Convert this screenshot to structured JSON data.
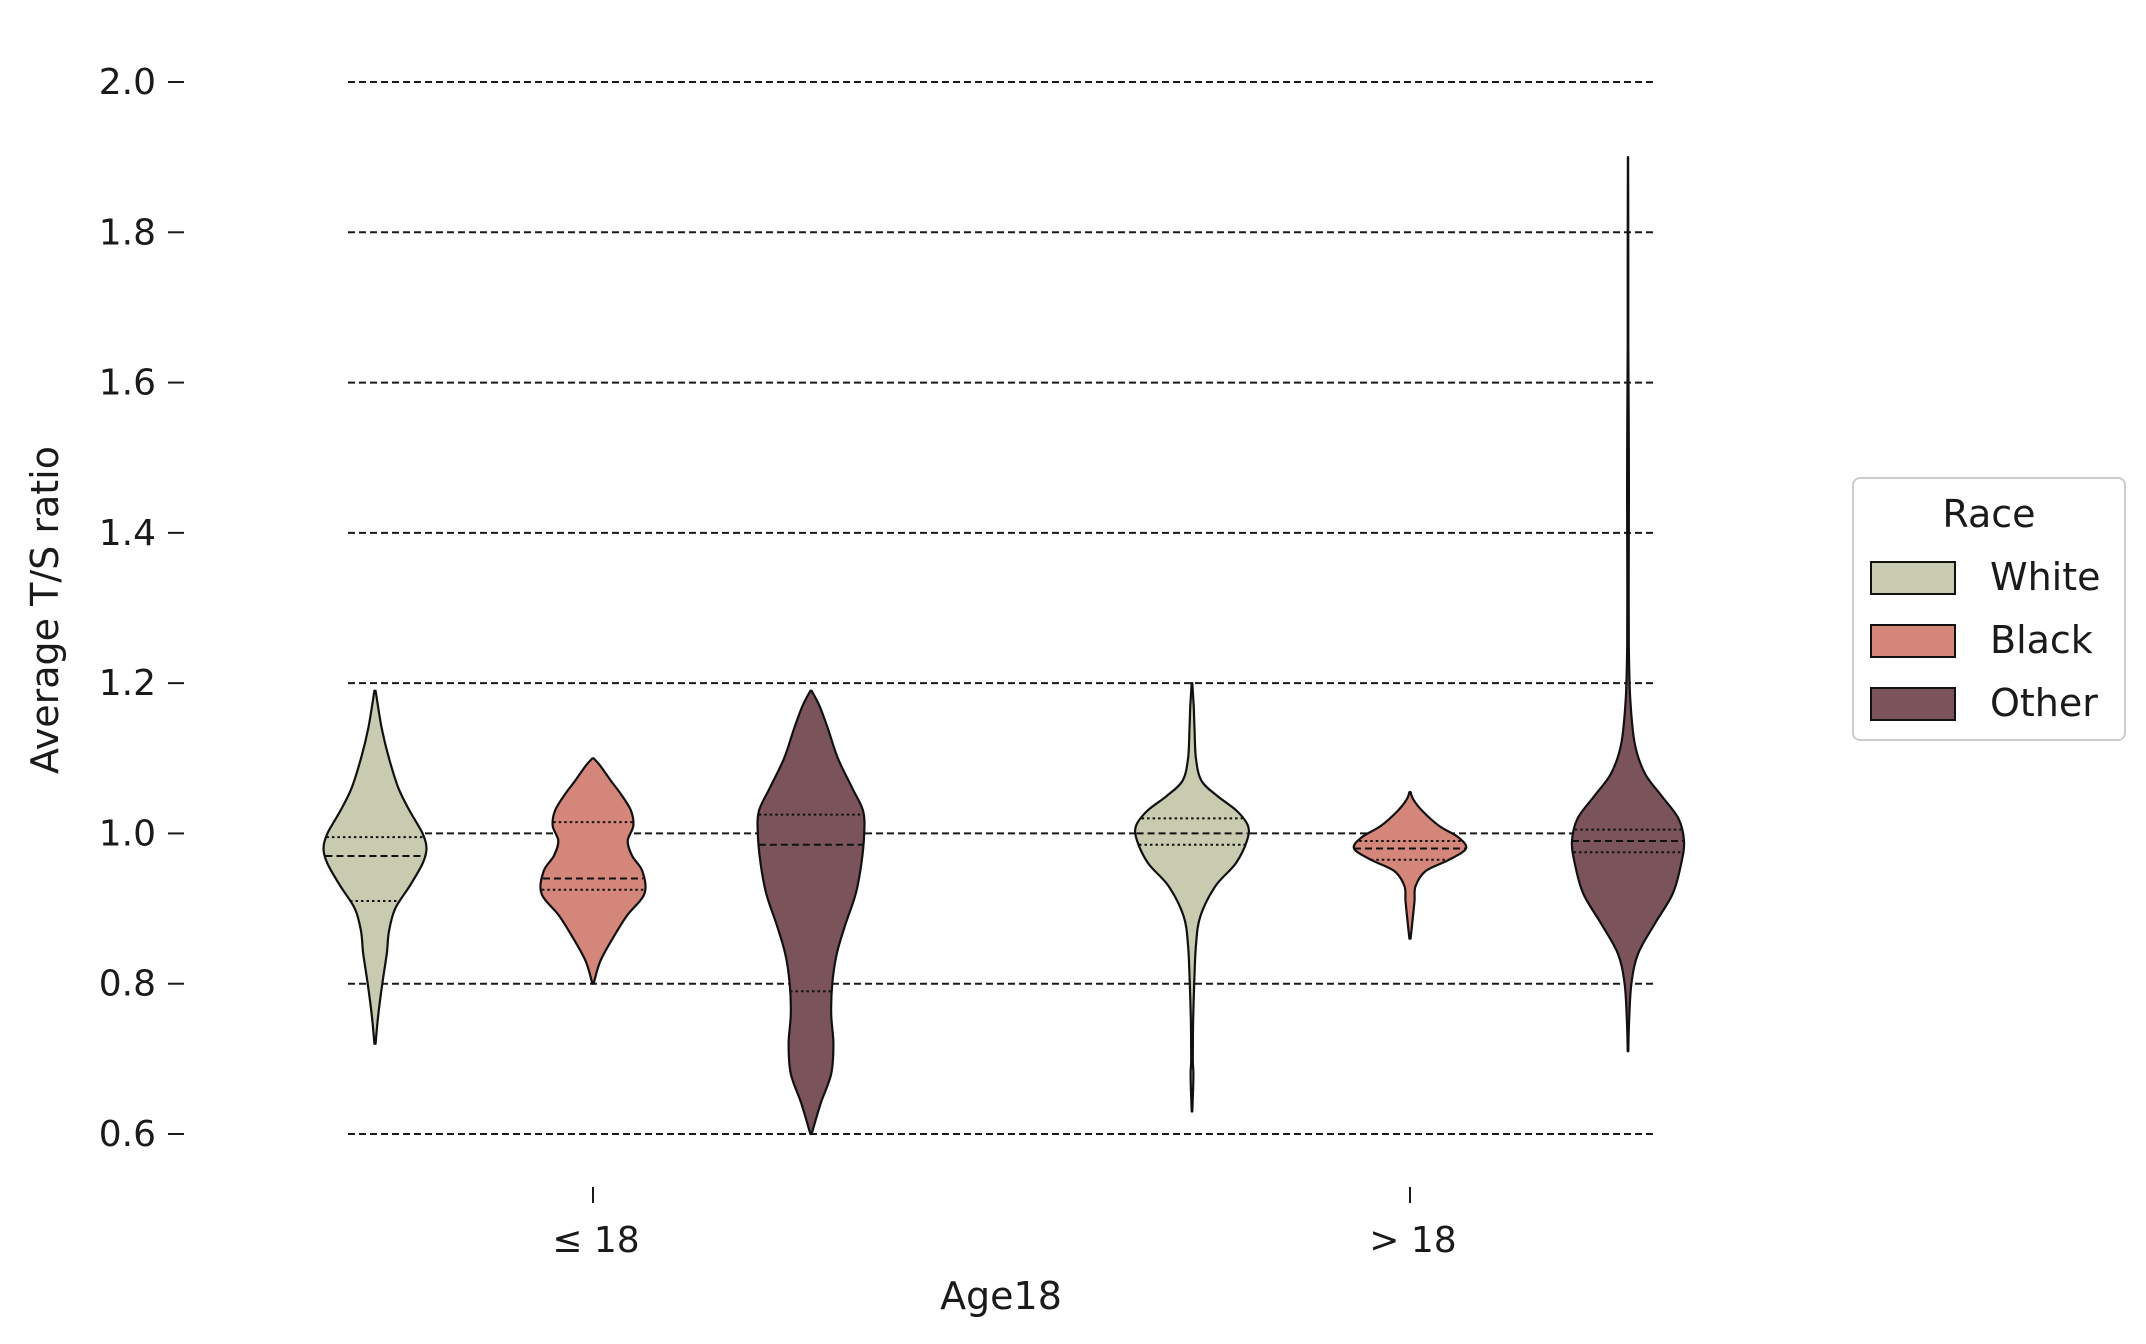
{
  "chart_data": {
    "type": "violin",
    "title": "",
    "xlabel": "Age18",
    "ylabel": "Average T/S ratio",
    "ylim": [
      0.6,
      2.0
    ],
    "yticks": [
      "0.6",
      "0.8",
      "1.0",
      "1.2",
      "1.4",
      "1.6",
      "1.8",
      "2.0"
    ],
    "grid": "horizontal dashed",
    "categories": [
      "≤ 18",
      "> 18"
    ],
    "legend": {
      "title": "Race",
      "position": "right"
    },
    "series": [
      {
        "name": "White",
        "color": "#c8cbb0",
        "groups": [
          {
            "category": "≤ 18",
            "min": 0.72,
            "max": 1.19,
            "quartiles": [
              0.91,
              0.97,
              0.995
            ],
            "density": [
              [
                0.72,
                0.01
              ],
              [
                0.76,
                0.06
              ],
              [
                0.8,
                0.13
              ],
              [
                0.84,
                0.21
              ],
              [
                0.87,
                0.25
              ],
              [
                0.9,
                0.36
              ],
              [
                0.93,
                0.62
              ],
              [
                0.96,
                0.85
              ],
              [
                0.98,
                0.92
              ],
              [
                1.0,
                0.85
              ],
              [
                1.03,
                0.62
              ],
              [
                1.06,
                0.42
              ],
              [
                1.1,
                0.25
              ],
              [
                1.14,
                0.12
              ],
              [
                1.19,
                0.01
              ]
            ]
          },
          {
            "category": "> 18",
            "min": 0.63,
            "max": 1.2,
            "quartiles": [
              0.985,
              1.0,
              1.02
            ],
            "density": [
              [
                0.63,
                0.005
              ],
              [
                0.66,
                0.02
              ],
              [
                0.68,
                0.025
              ],
              [
                0.7,
                0.015
              ],
              [
                0.75,
                0.02
              ],
              [
                0.8,
                0.04
              ],
              [
                0.85,
                0.07
              ],
              [
                0.89,
                0.15
              ],
              [
                0.93,
                0.42
              ],
              [
                0.96,
                0.78
              ],
              [
                0.99,
                0.98
              ],
              [
                1.01,
                1.0
              ],
              [
                1.03,
                0.8
              ],
              [
                1.05,
                0.45
              ],
              [
                1.07,
                0.17
              ],
              [
                1.1,
                0.07
              ],
              [
                1.14,
                0.045
              ],
              [
                1.17,
                0.03
              ],
              [
                1.2,
                0.005
              ]
            ]
          }
        ]
      },
      {
        "name": "Black",
        "color": "#d4867a",
        "groups": [
          {
            "category": "≤ 18",
            "min": 0.8,
            "max": 1.1,
            "quartiles": [
              0.925,
              0.94,
              1.015
            ],
            "density": [
              [
                0.8,
                0.01
              ],
              [
                0.83,
                0.13
              ],
              [
                0.86,
                0.35
              ],
              [
                0.89,
                0.6
              ],
              [
                0.92,
                0.92
              ],
              [
                0.95,
                0.88
              ],
              [
                0.97,
                0.7
              ],
              [
                0.99,
                0.62
              ],
              [
                1.01,
                0.72
              ],
              [
                1.03,
                0.68
              ],
              [
                1.05,
                0.52
              ],
              [
                1.07,
                0.32
              ],
              [
                1.09,
                0.13
              ],
              [
                1.1,
                0.01
              ]
            ]
          },
          {
            "category": "> 18",
            "min": 0.86,
            "max": 1.055,
            "quartiles": [
              0.965,
              0.98,
              0.99
            ],
            "density": [
              [
                0.86,
                0.01
              ],
              [
                0.88,
                0.04
              ],
              [
                0.91,
                0.08
              ],
              [
                0.93,
                0.1
              ],
              [
                0.95,
                0.28
              ],
              [
                0.965,
                0.7
              ],
              [
                0.98,
                1.0
              ],
              [
                0.995,
                0.86
              ],
              [
                1.01,
                0.52
              ],
              [
                1.03,
                0.22
              ],
              [
                1.045,
                0.06
              ],
              [
                1.055,
                0.01
              ]
            ]
          }
        ]
      },
      {
        "name": "Other",
        "color": "#7a545a",
        "groups": [
          {
            "category": "≤ 18",
            "min": 0.6,
            "max": 1.19,
            "quartiles": [
              0.79,
              0.985,
              1.025
            ],
            "density": [
              [
                0.6,
                0.01
              ],
              [
                0.64,
                0.17
              ],
              [
                0.68,
                0.36
              ],
              [
                0.72,
                0.4
              ],
              [
                0.76,
                0.36
              ],
              [
                0.8,
                0.38
              ],
              [
                0.84,
                0.46
              ],
              [
                0.88,
                0.62
              ],
              [
                0.92,
                0.8
              ],
              [
                0.96,
                0.9
              ],
              [
                1.0,
                0.95
              ],
              [
                1.03,
                0.93
              ],
              [
                1.06,
                0.74
              ],
              [
                1.1,
                0.48
              ],
              [
                1.14,
                0.3
              ],
              [
                1.17,
                0.15
              ],
              [
                1.19,
                0.01
              ]
            ]
          },
          {
            "category": "> 18",
            "min": 0.71,
            "max": 1.9,
            "quartiles": [
              0.975,
              0.99,
              1.005
            ],
            "density": [
              [
                0.71,
                0.005
              ],
              [
                0.75,
                0.02
              ],
              [
                0.8,
                0.06
              ],
              [
                0.84,
                0.18
              ],
              [
                0.88,
                0.48
              ],
              [
                0.92,
                0.8
              ],
              [
                0.96,
                0.95
              ],
              [
                0.99,
                1.0
              ],
              [
                1.02,
                0.9
              ],
              [
                1.05,
                0.6
              ],
              [
                1.08,
                0.3
              ],
              [
                1.12,
                0.12
              ],
              [
                1.18,
                0.04
              ],
              [
                1.25,
                0.015
              ],
              [
                1.35,
                0.012
              ],
              [
                1.45,
                0.016
              ],
              [
                1.55,
                0.012
              ],
              [
                1.65,
                0.006
              ],
              [
                1.75,
                0.005
              ],
              [
                1.85,
                0.003
              ],
              [
                1.9,
                0.001
              ]
            ]
          }
        ]
      }
    ]
  }
}
